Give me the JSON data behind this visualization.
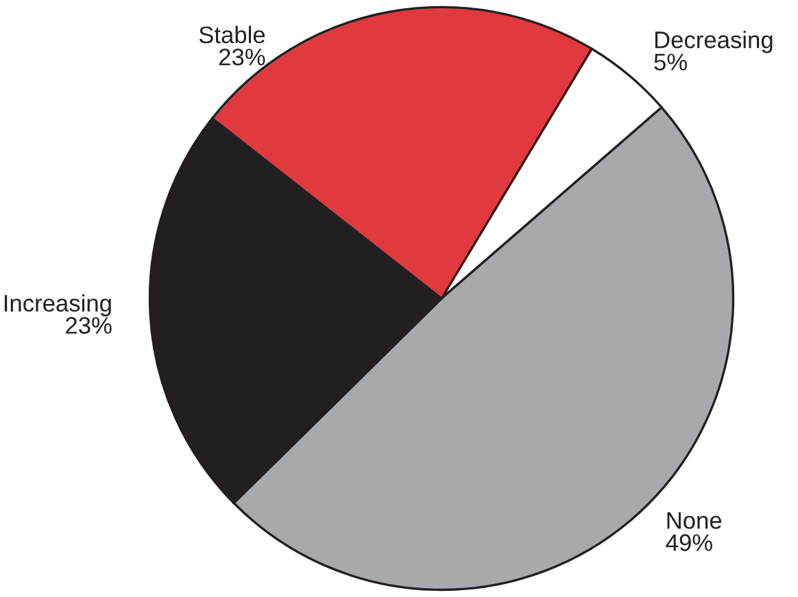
{
  "chart_data": {
    "type": "pie",
    "categories": [
      "Decreasing",
      "None",
      "Increasing",
      "Stable"
    ],
    "values": [
      5,
      49,
      23,
      23
    ],
    "value_labels": [
      "5%",
      "49%",
      "23%",
      "23%"
    ],
    "colors": [
      "#ffffff",
      "#a7a9ac",
      "#231f20",
      "#e03a3e"
    ]
  }
}
